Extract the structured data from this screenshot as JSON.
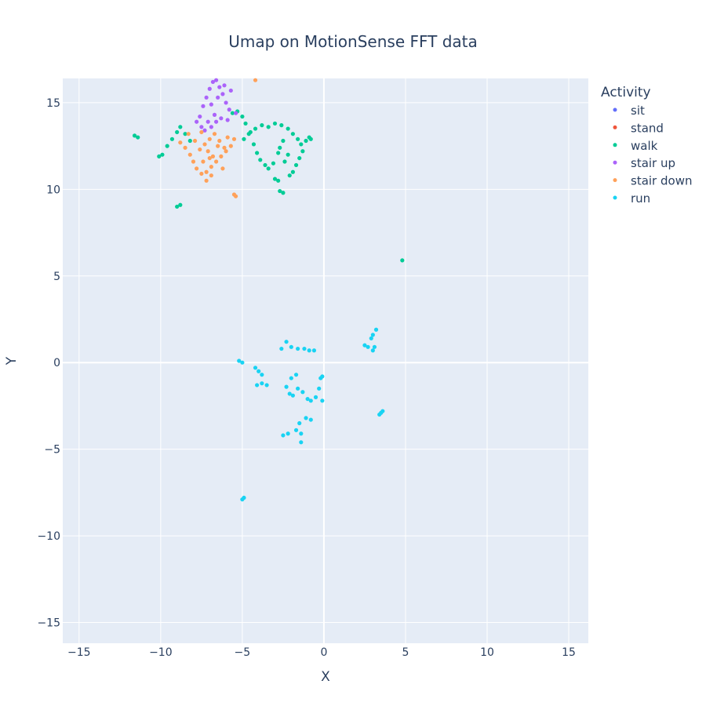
{
  "chart_data": {
    "type": "scatter",
    "title": "Umap on MotionSense  FFT data",
    "xlabel": "X",
    "ylabel": "Y",
    "xlim": [
      -16,
      16.2
    ],
    "ylim": [
      -16.2,
      16.4
    ],
    "xticks": [
      -15,
      -10,
      -5,
      0,
      5,
      10,
      15
    ],
    "yticks": [
      -15,
      -10,
      -5,
      0,
      5,
      10,
      15
    ],
    "xtick_labels": [
      "−15",
      "−10",
      "−5",
      "0",
      "5",
      "10",
      "15"
    ],
    "ytick_labels": [
      "−15",
      "−10",
      "−5",
      "0",
      "5",
      "10",
      "15"
    ],
    "grid": true,
    "legend_title": "Activity",
    "legend_position": "right",
    "colors": {
      "plot_bg": "#e5ecf6",
      "grid": "#ffffff",
      "text": "#2a3f5f"
    },
    "series": [
      {
        "name": "sit",
        "color": "#636efa",
        "points": []
      },
      {
        "name": "stand",
        "color": "#ef553b",
        "points": []
      },
      {
        "name": "walk",
        "color": "#00cc96",
        "points": [
          [
            -11.6,
            13.1
          ],
          [
            -11.4,
            13.0
          ],
          [
            -10.1,
            11.9
          ],
          [
            -9.9,
            12.0
          ],
          [
            -9.6,
            12.5
          ],
          [
            -9.3,
            12.9
          ],
          [
            -9.0,
            13.3
          ],
          [
            -8.8,
            13.6
          ],
          [
            -8.5,
            13.2
          ],
          [
            -8.2,
            12.8
          ],
          [
            -9.0,
            9.0
          ],
          [
            -8.8,
            9.1
          ],
          [
            -5.6,
            14.4
          ],
          [
            -5.3,
            14.5
          ],
          [
            -5.0,
            14.2
          ],
          [
            -4.8,
            13.8
          ],
          [
            -4.6,
            13.2
          ],
          [
            -4.3,
            12.6
          ],
          [
            -4.1,
            12.1
          ],
          [
            -3.9,
            11.7
          ],
          [
            -3.6,
            11.4
          ],
          [
            -3.4,
            11.2
          ],
          [
            -3.1,
            11.5
          ],
          [
            -3.0,
            10.6
          ],
          [
            -2.8,
            10.5
          ],
          [
            -2.7,
            9.9
          ],
          [
            -2.5,
            9.8
          ],
          [
            -3.8,
            13.7
          ],
          [
            -3.4,
            13.6
          ],
          [
            -3.0,
            13.8
          ],
          [
            -2.6,
            13.7
          ],
          [
            -2.2,
            13.5
          ],
          [
            -1.9,
            13.2
          ],
          [
            -1.6,
            12.9
          ],
          [
            -1.4,
            12.6
          ],
          [
            -1.3,
            12.2
          ],
          [
            -1.5,
            11.8
          ],
          [
            -1.7,
            11.4
          ],
          [
            -1.9,
            11.0
          ],
          [
            -2.1,
            10.8
          ],
          [
            -2.5,
            12.8
          ],
          [
            -2.7,
            12.4
          ],
          [
            -2.8,
            12.1
          ],
          [
            -2.4,
            11.6
          ],
          [
            -2.2,
            12.0
          ],
          [
            -1.1,
            12.8
          ],
          [
            -0.9,
            13.0
          ],
          [
            -0.8,
            12.9
          ],
          [
            -4.9,
            12.9
          ],
          [
            -4.5,
            13.3
          ],
          [
            -4.2,
            13.5
          ],
          [
            4.8,
            5.9
          ]
        ]
      },
      {
        "name": "stair up",
        "color": "#ab63fa",
        "points": [
          [
            -7.6,
            14.2
          ],
          [
            -7.4,
            14.8
          ],
          [
            -7.2,
            15.3
          ],
          [
            -7.0,
            15.8
          ],
          [
            -6.8,
            16.2
          ],
          [
            -6.6,
            16.3
          ],
          [
            -6.4,
            15.9
          ],
          [
            -6.2,
            15.5
          ],
          [
            -6.0,
            15.0
          ],
          [
            -5.8,
            14.6
          ],
          [
            -7.8,
            13.9
          ],
          [
            -7.5,
            13.6
          ],
          [
            -7.1,
            13.9
          ],
          [
            -6.7,
            14.3
          ],
          [
            -6.3,
            14.1
          ],
          [
            -5.9,
            14.0
          ],
          [
            -6.9,
            14.9
          ],
          [
            -6.5,
            15.3
          ],
          [
            -6.1,
            16.0
          ],
          [
            -5.7,
            15.7
          ],
          [
            -7.3,
            13.4
          ],
          [
            -6.9,
            13.6
          ],
          [
            -6.6,
            13.9
          ],
          [
            -5.4,
            14.4
          ]
        ]
      },
      {
        "name": "stair down",
        "color": "#ffa15a",
        "points": [
          [
            -8.8,
            12.7
          ],
          [
            -8.5,
            12.4
          ],
          [
            -8.2,
            12.0
          ],
          [
            -8.0,
            11.6
          ],
          [
            -7.8,
            11.2
          ],
          [
            -7.5,
            10.9
          ],
          [
            -7.2,
            11.0
          ],
          [
            -6.9,
            11.3
          ],
          [
            -6.6,
            11.6
          ],
          [
            -6.3,
            11.9
          ],
          [
            -6.0,
            12.2
          ],
          [
            -5.7,
            12.5
          ],
          [
            -5.5,
            12.9
          ],
          [
            -7.6,
            12.3
          ],
          [
            -7.3,
            12.6
          ],
          [
            -7.0,
            12.9
          ],
          [
            -6.7,
            13.2
          ],
          [
            -6.4,
            12.8
          ],
          [
            -6.1,
            12.4
          ],
          [
            -7.9,
            12.8
          ],
          [
            -7.5,
            13.3
          ],
          [
            -7.1,
            12.2
          ],
          [
            -6.8,
            11.9
          ],
          [
            -6.5,
            12.5
          ],
          [
            -5.5,
            9.7
          ],
          [
            -5.4,
            9.6
          ],
          [
            -4.2,
            16.3
          ],
          [
            -7.4,
            11.6
          ],
          [
            -7.0,
            11.8
          ],
          [
            -6.2,
            11.2
          ],
          [
            -8.3,
            13.2
          ],
          [
            -5.9,
            13.0
          ],
          [
            -6.9,
            10.8
          ],
          [
            -7.2,
            10.5
          ]
        ]
      },
      {
        "name": "run",
        "color": "#19d3f3",
        "points": [
          [
            -5.2,
            0.1
          ],
          [
            -5.0,
            0.0
          ],
          [
            -4.9,
            -7.8
          ],
          [
            -5.0,
            -7.9
          ],
          [
            -4.2,
            -0.3
          ],
          [
            -4.0,
            -0.5
          ],
          [
            -3.8,
            -0.7
          ],
          [
            -4.1,
            -1.3
          ],
          [
            -3.8,
            -1.2
          ],
          [
            -3.5,
            -1.3
          ],
          [
            -2.6,
            0.8
          ],
          [
            -2.3,
            1.2
          ],
          [
            -2.0,
            0.9
          ],
          [
            -1.6,
            0.8
          ],
          [
            -1.2,
            0.8
          ],
          [
            -0.9,
            0.7
          ],
          [
            -0.6,
            0.7
          ],
          [
            -2.3,
            -1.4
          ],
          [
            -2.1,
            -1.8
          ],
          [
            -1.9,
            -1.9
          ],
          [
            -1.6,
            -1.5
          ],
          [
            -1.3,
            -1.7
          ],
          [
            -1.0,
            -2.1
          ],
          [
            -0.8,
            -2.2
          ],
          [
            -0.5,
            -2.0
          ],
          [
            -0.3,
            -1.5
          ],
          [
            -0.2,
            -0.9
          ],
          [
            -0.1,
            -0.8
          ],
          [
            -0.1,
            -2.2
          ],
          [
            -2.0,
            -0.9
          ],
          [
            -1.7,
            -0.7
          ],
          [
            -1.5,
            -3.5
          ],
          [
            -1.4,
            -4.1
          ],
          [
            -1.4,
            -4.6
          ],
          [
            -1.7,
            -3.9
          ],
          [
            -2.2,
            -4.1
          ],
          [
            -2.5,
            -4.2
          ],
          [
            -1.1,
            -3.2
          ],
          [
            -0.8,
            -3.3
          ],
          [
            2.5,
            1.0
          ],
          [
            2.7,
            0.9
          ],
          [
            3.0,
            0.7
          ],
          [
            3.1,
            0.9
          ],
          [
            3.2,
            1.9
          ],
          [
            3.0,
            1.6
          ],
          [
            2.9,
            1.4
          ],
          [
            3.5,
            -2.9
          ],
          [
            3.4,
            -3.0
          ],
          [
            3.6,
            -2.8
          ]
        ]
      }
    ]
  }
}
